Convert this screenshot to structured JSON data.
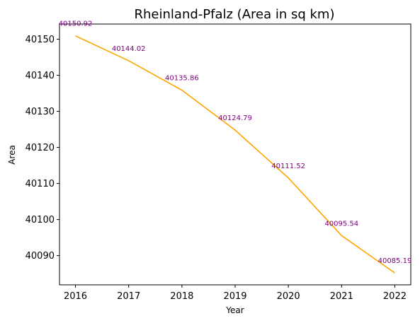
{
  "chart_data": {
    "type": "line",
    "title": "Rheinland-Pfalz (Area in sq km)",
    "xlabel": "Year",
    "ylabel": "Area",
    "x": [
      2016,
      2017,
      2018,
      2019,
      2020,
      2021,
      2022
    ],
    "x_ticks": [
      "2016",
      "2017",
      "2018",
      "2019",
      "2020",
      "2021",
      "2022"
    ],
    "y_ticks": [
      "40090",
      "40100",
      "40110",
      "40120",
      "40130",
      "40140",
      "40150"
    ],
    "y_tick_values": [
      40090,
      40100,
      40110,
      40120,
      40130,
      40140,
      40150
    ],
    "series": [
      {
        "values": [
          40150.92,
          40144.02,
          40135.86,
          40124.79,
          40111.52,
          40095.54,
          40085.19
        ],
        "labels": [
          "40150.92",
          "40144.02",
          "40135.86",
          "40124.79",
          "40111.52",
          "40095.54",
          "40085.19"
        ],
        "color": "#ffa500",
        "label_color": "#800080"
      }
    ],
    "xlim": [
      2015.7,
      2022.3
    ],
    "ylim": [
      40081.9,
      40154.2
    ],
    "grid": false,
    "legend": "none"
  }
}
